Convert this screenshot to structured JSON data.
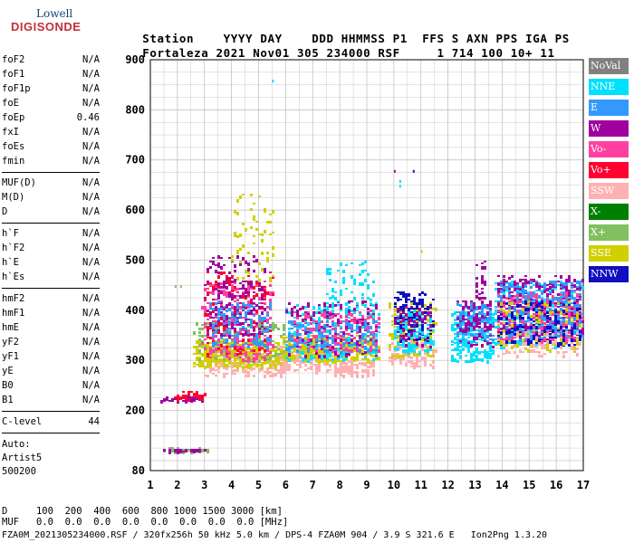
{
  "logo": {
    "line1": "Lowell",
    "line2": "DIGISONDE"
  },
  "header": {
    "labels": [
      "Station",
      "YYYY",
      "DAY",
      "DDD",
      "HHMMSS",
      "P1",
      "FFS",
      "S",
      "AXN",
      "PPS",
      "IGA",
      "PS"
    ],
    "values": [
      "Fortaleza",
      "2021",
      "Nov01",
      "305",
      "234000",
      "RSF",
      "",
      "1",
      "714",
      "100",
      "10+",
      "11"
    ]
  },
  "params": [
    [
      {
        "name": "foF2",
        "value": "N/A"
      },
      {
        "name": "foF1",
        "value": "N/A"
      },
      {
        "name": "foF1p",
        "value": "N/A"
      },
      {
        "name": "foE",
        "value": "N/A"
      },
      {
        "name": "foEp",
        "value": "0.46"
      },
      {
        "name": "fxI",
        "value": "N/A"
      },
      {
        "name": "foEs",
        "value": "N/A"
      },
      {
        "name": "fmin",
        "value": "N/A"
      }
    ],
    [
      {
        "name": "MUF(D)",
        "value": "N/A"
      },
      {
        "name": "M(D)",
        "value": "N/A"
      },
      {
        "name": "D",
        "value": "N/A"
      }
    ],
    [
      {
        "name": "h`F",
        "value": "N/A"
      },
      {
        "name": "h`F2",
        "value": "N/A"
      },
      {
        "name": "h`E",
        "value": "N/A"
      },
      {
        "name": "h`Es",
        "value": "N/A"
      }
    ],
    [
      {
        "name": "hmF2",
        "value": "N/A"
      },
      {
        "name": "hmF1",
        "value": "N/A"
      },
      {
        "name": "hmE",
        "value": "N/A"
      },
      {
        "name": "yF2",
        "value": "N/A"
      },
      {
        "name": "yF1",
        "value": "N/A"
      },
      {
        "name": "yE",
        "value": "N/A"
      },
      {
        "name": "B0",
        "value": "N/A"
      },
      {
        "name": "B1",
        "value": "N/A"
      }
    ],
    [
      {
        "name": "C-level",
        "value": "44"
      }
    ]
  ],
  "auto": {
    "line1": "Auto:",
    "line2": "Artist5",
    "line3": "500200"
  },
  "legend": [
    {
      "label": "NoVal",
      "color": "#808080"
    },
    {
      "label": "NNE",
      "color": "#00e0ff"
    },
    {
      "label": "E",
      "color": "#3399ff"
    },
    {
      "label": "W",
      "color": "#a000a0"
    },
    {
      "label": "Vo-",
      "color": "#ff40a0"
    },
    {
      "label": "Vo+",
      "color": "#ff0030"
    },
    {
      "label": "SSW",
      "color": "#ffb0b0"
    },
    {
      "label": "X-",
      "color": "#008000"
    },
    {
      "label": "X+",
      "color": "#80c060"
    },
    {
      "label": "SSE",
      "color": "#d0d000"
    },
    {
      "label": "NNW",
      "color": "#1010c0"
    }
  ],
  "chart_data": {
    "type": "scatter",
    "title": "",
    "xlabel": "",
    "ylabel": "",
    "xlim": [
      1,
      17
    ],
    "ylim": [
      80,
      900
    ],
    "x_ticks": [
      1,
      2,
      3,
      4,
      5,
      6,
      7,
      8,
      9,
      10,
      11,
      12,
      13,
      14,
      15,
      16,
      17
    ],
    "y_ticks": [
      80,
      200,
      300,
      400,
      500,
      600,
      700,
      800,
      900
    ],
    "grid": true,
    "clusters": [
      {
        "x0": 1.5,
        "x1": 3.1,
        "y0": 120,
        "y1": 126,
        "series": "X+",
        "n": 40
      },
      {
        "x0": 1.5,
        "x1": 3.1,
        "y0": 121,
        "y1": 125,
        "series": "W",
        "n": 30
      },
      {
        "x0": 1.4,
        "x1": 2.9,
        "y0": 221,
        "y1": 230,
        "series": "W",
        "n": 40
      },
      {
        "x0": 1.9,
        "x1": 3.0,
        "y0": 225,
        "y1": 240,
        "series": "Vo+",
        "n": 30
      },
      {
        "x0": 3.0,
        "x1": 6.0,
        "y0": 270,
        "y1": 330,
        "series": "SSW",
        "n": 220
      },
      {
        "x0": 2.6,
        "x1": 5.8,
        "y0": 290,
        "y1": 340,
        "series": "SSE",
        "n": 380
      },
      {
        "x0": 2.5,
        "x1": 6.0,
        "y0": 300,
        "y1": 380,
        "series": "X+",
        "n": 140
      },
      {
        "x0": 2.9,
        "x1": 5.5,
        "y0": 300,
        "y1": 460,
        "series": "Vo-",
        "n": 260
      },
      {
        "x0": 3.0,
        "x1": 5.2,
        "y0": 350,
        "y1": 510,
        "series": "W",
        "n": 240
      },
      {
        "x0": 3.0,
        "x1": 5.5,
        "y0": 310,
        "y1": 480,
        "series": "Vo+",
        "n": 120
      },
      {
        "x0": 3.2,
        "x1": 5.4,
        "y0": 330,
        "y1": 420,
        "series": "E",
        "n": 120
      },
      {
        "x0": 4.0,
        "x1": 5.6,
        "y0": 460,
        "y1": 640,
        "series": "SSE",
        "n": 60
      },
      {
        "x0": 5.8,
        "x1": 7.9,
        "y0": 280,
        "y1": 330,
        "series": "SSW",
        "n": 150
      },
      {
        "x0": 5.8,
        "x1": 9.4,
        "y0": 300,
        "y1": 350,
        "series": "SSE",
        "n": 360
      },
      {
        "x0": 6.0,
        "x1": 9.4,
        "y0": 300,
        "y1": 420,
        "series": "NNE",
        "n": 220
      },
      {
        "x0": 6.0,
        "x1": 9.4,
        "y0": 310,
        "y1": 420,
        "series": "W",
        "n": 160
      },
      {
        "x0": 6.2,
        "x1": 9.4,
        "y0": 320,
        "y1": 400,
        "series": "Vo-",
        "n": 150
      },
      {
        "x0": 6.0,
        "x1": 9.4,
        "y0": 320,
        "y1": 380,
        "series": "E",
        "n": 120
      },
      {
        "x0": 7.8,
        "x1": 9.2,
        "y0": 270,
        "y1": 300,
        "series": "SSW",
        "n": 90
      },
      {
        "x0": 7.5,
        "x1": 9.2,
        "y0": 410,
        "y1": 500,
        "series": "NNE",
        "n": 60
      },
      {
        "x0": 9.8,
        "x1": 11.5,
        "y0": 290,
        "y1": 340,
        "series": "SSW",
        "n": 110
      },
      {
        "x0": 9.8,
        "x1": 11.5,
        "y0": 310,
        "y1": 420,
        "series": "SSE",
        "n": 130
      },
      {
        "x0": 10.0,
        "x1": 11.4,
        "y0": 340,
        "y1": 440,
        "series": "NNW",
        "n": 150
      },
      {
        "x0": 10.0,
        "x1": 11.4,
        "y0": 320,
        "y1": 400,
        "series": "NNE",
        "n": 120
      },
      {
        "x0": 10.0,
        "x1": 11.4,
        "y0": 330,
        "y1": 410,
        "series": "W",
        "n": 70
      },
      {
        "x0": 12.1,
        "x1": 13.7,
        "y0": 300,
        "y1": 400,
        "series": "NNE",
        "n": 220
      },
      {
        "x0": 12.3,
        "x1": 13.6,
        "y0": 340,
        "y1": 420,
        "series": "E",
        "n": 130
      },
      {
        "x0": 12.3,
        "x1": 13.6,
        "y0": 330,
        "y1": 420,
        "series": "W",
        "n": 100
      },
      {
        "x0": 13.0,
        "x1": 13.4,
        "y0": 420,
        "y1": 500,
        "series": "W",
        "n": 30
      },
      {
        "x0": 13.7,
        "x1": 16.9,
        "y0": 330,
        "y1": 460,
        "series": "NNE",
        "n": 260
      },
      {
        "x0": 13.8,
        "x1": 16.9,
        "y0": 340,
        "y1": 470,
        "series": "W",
        "n": 420
      },
      {
        "x0": 13.8,
        "x1": 16.9,
        "y0": 340,
        "y1": 440,
        "series": "Vo-",
        "n": 320
      },
      {
        "x0": 13.8,
        "x1": 16.9,
        "y0": 340,
        "y1": 460,
        "series": "E",
        "n": 260
      },
      {
        "x0": 13.8,
        "x1": 16.9,
        "y0": 330,
        "y1": 420,
        "series": "NNW",
        "n": 160
      },
      {
        "x0": 13.8,
        "x1": 16.9,
        "y0": 320,
        "y1": 420,
        "series": "SSE",
        "n": 90
      },
      {
        "x0": 13.8,
        "x1": 16.9,
        "y0": 310,
        "y1": 360,
        "series": "SSW",
        "n": 70
      }
    ],
    "isolated_points": [
      {
        "x": 5.5,
        "y": 860,
        "series": "NNE"
      },
      {
        "x": 10.0,
        "y": 680,
        "series": "W"
      },
      {
        "x": 10.2,
        "y": 660,
        "series": "NNE"
      },
      {
        "x": 10.2,
        "y": 650,
        "series": "NNE"
      },
      {
        "x": 10.7,
        "y": 680,
        "series": "NNW"
      },
      {
        "x": 11.0,
        "y": 520,
        "series": "SSE"
      },
      {
        "x": 1.9,
        "y": 450,
        "series": "X+"
      },
      {
        "x": 2.1,
        "y": 450,
        "series": "X+"
      }
    ]
  },
  "d_table": {
    "row1_label": "D",
    "row1_values": [
      "100",
      "200",
      "400",
      "600",
      "800",
      "1000",
      "1500",
      "3000"
    ],
    "row1_unit": "[km]",
    "row2_label": "MUF",
    "row2_values": [
      "0.0",
      "0.0",
      "0.0",
      "0.0",
      "0.0",
      "0.0",
      "0.0",
      "0.0"
    ],
    "row2_unit": "[MHz]"
  },
  "footer": {
    "text": "FZA0M_2021305234000.RSF / 320fx256h 50 kHz 5.0 km / DPS-4 FZA0M 904 / 3.9 S 321.6 E   Ion2Png 1.3.20"
  }
}
